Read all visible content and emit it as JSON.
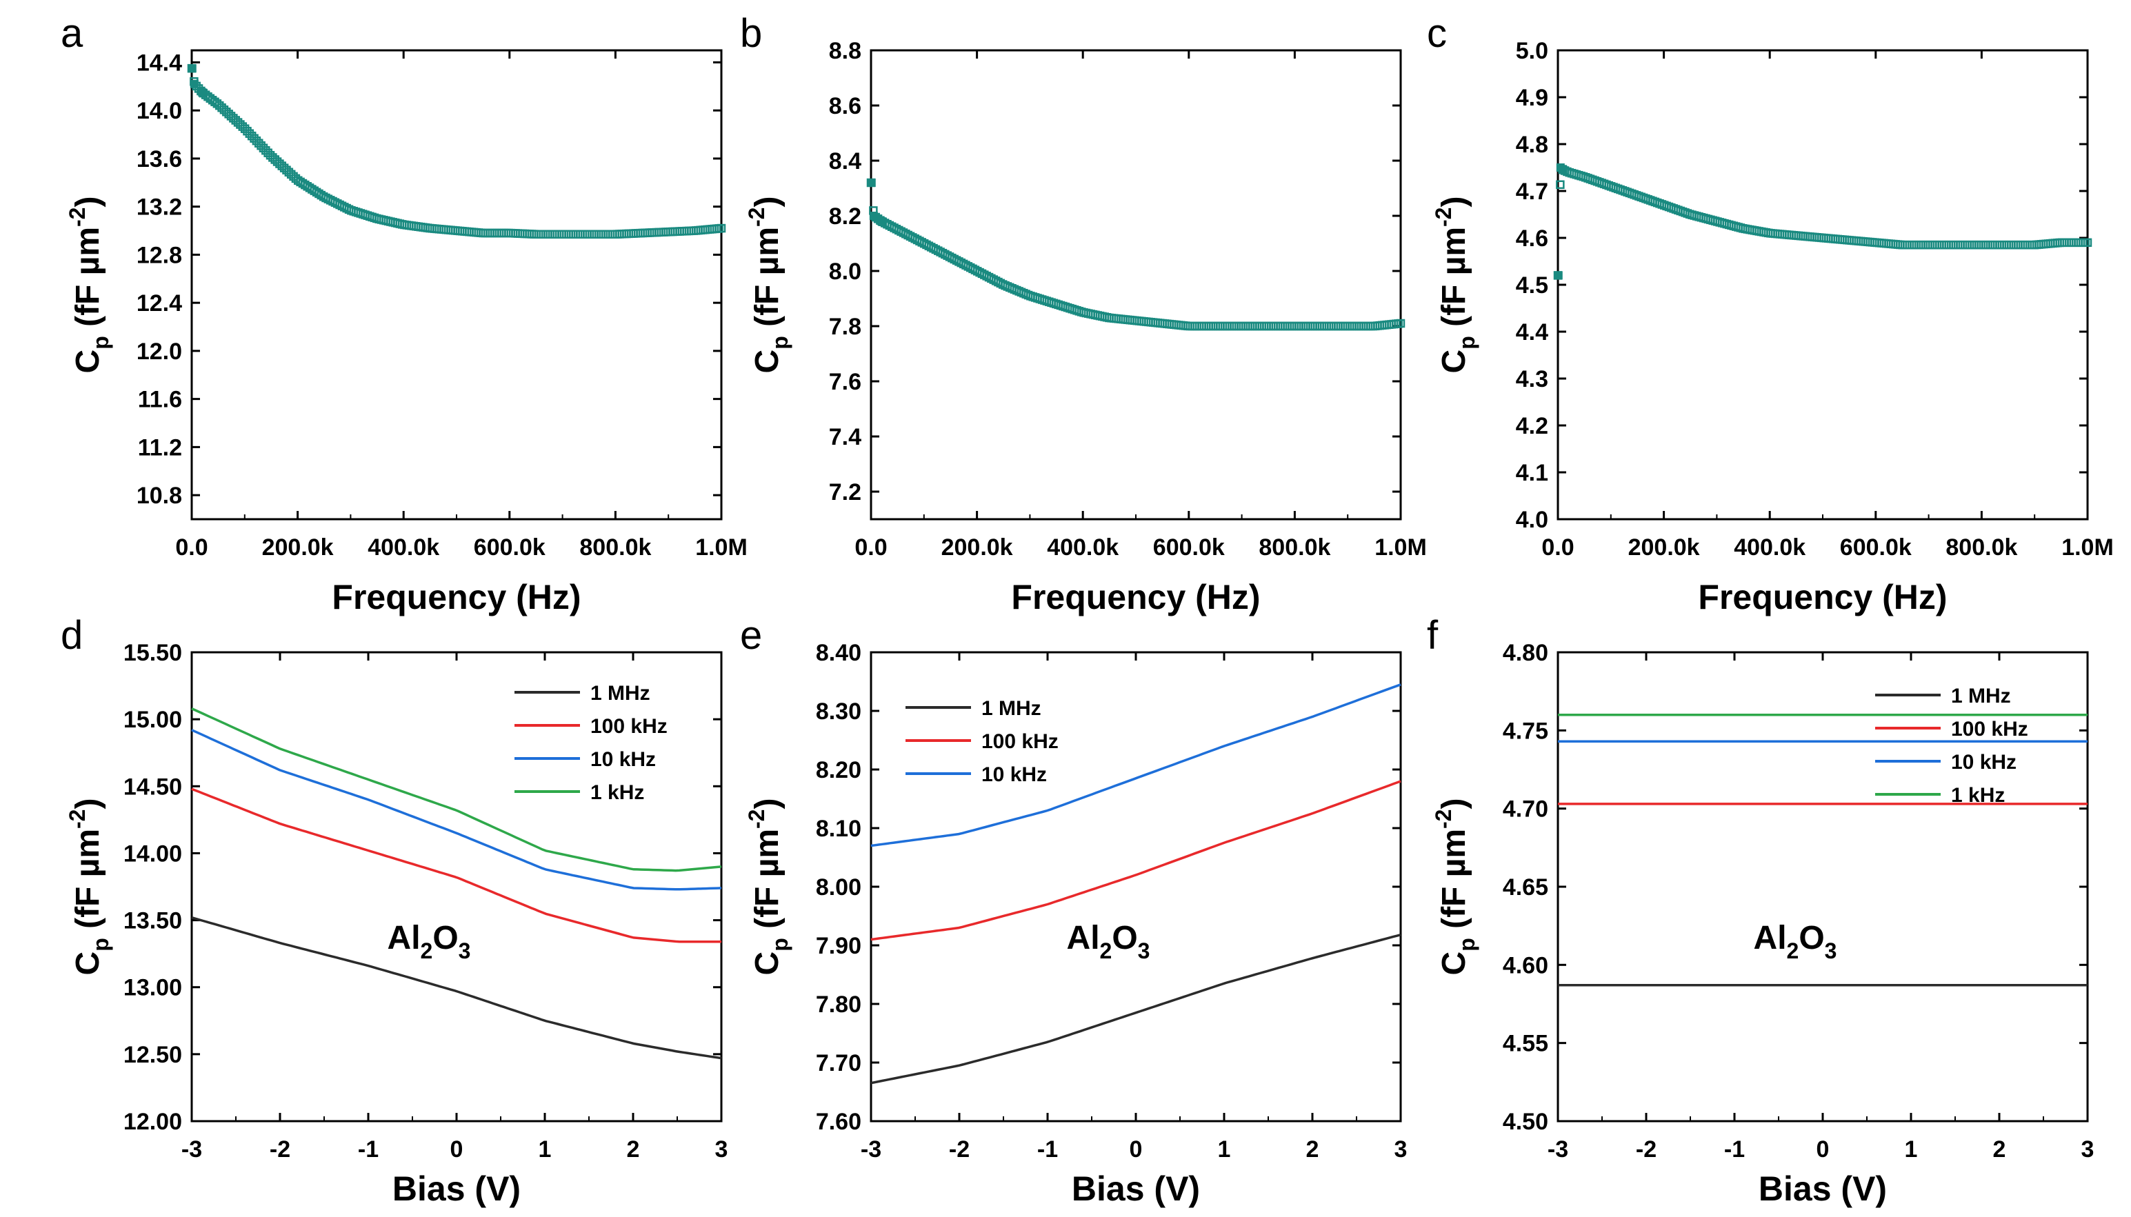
{
  "chart_data": [
    {
      "panel": "a",
      "type": "scatter",
      "xlabel": "Frequency  (Hz)",
      "ylabel": "C_p (fF µm^-2)",
      "xlim": [
        0,
        1000000
      ],
      "ylim": [
        10.6,
        14.5
      ],
      "xticks": [
        0,
        200000,
        400000,
        600000,
        800000,
        1000000
      ],
      "xtick_labels": [
        "0.0",
        "200.0k",
        "400.0k",
        "600.0k",
        "800.0k",
        "1.0M"
      ],
      "yticks": [
        10.8,
        11.2,
        11.6,
        12.0,
        12.4,
        12.8,
        13.2,
        13.6,
        14.0,
        14.4
      ],
      "ytick_labels": [
        "10.8",
        "11.2",
        "11.6",
        "12.0",
        "12.4",
        "12.8",
        "13.2",
        "13.6",
        "14.0",
        "14.4"
      ],
      "marker_color": "#1a8a80",
      "series": [
        {
          "x": [
            1000,
            5000,
            20000,
            50000,
            100000,
            150000,
            200000,
            250000,
            300000,
            350000,
            400000,
            450000,
            500000,
            550000,
            600000,
            650000,
            700000,
            750000,
            800000,
            850000,
            900000,
            950000,
            1000000
          ],
          "y": [
            14.35,
            14.22,
            14.15,
            14.05,
            13.85,
            13.62,
            13.42,
            13.28,
            13.17,
            13.1,
            13.05,
            13.02,
            13.0,
            12.98,
            12.98,
            12.97,
            12.97,
            12.97,
            12.97,
            12.98,
            12.99,
            13.0,
            13.02
          ]
        }
      ]
    },
    {
      "panel": "b",
      "type": "scatter",
      "xlabel": "Frequency  (Hz)",
      "ylabel": "C_p (fF µm^-2)",
      "xlim": [
        0,
        1000000
      ],
      "ylim": [
        7.1,
        8.8
      ],
      "xticks": [
        0,
        200000,
        400000,
        600000,
        800000,
        1000000
      ],
      "xtick_labels": [
        "0.0",
        "200.0k",
        "400.0k",
        "600.0k",
        "800.0k",
        "1.0M"
      ],
      "yticks": [
        7.2,
        7.4,
        7.6,
        7.8,
        8.0,
        8.2,
        8.4,
        8.6,
        8.8
      ],
      "ytick_labels": [
        "7.2",
        "7.4",
        "7.6",
        "7.8",
        "8.0",
        "8.2",
        "8.4",
        "8.6",
        "8.8"
      ],
      "marker_color": "#1a8a80",
      "series": [
        {
          "x": [
            1000,
            5000,
            20000,
            50000,
            100000,
            150000,
            200000,
            250000,
            300000,
            350000,
            400000,
            450000,
            500000,
            550000,
            600000,
            650000,
            700000,
            750000,
            800000,
            850000,
            900000,
            950000,
            1000000
          ],
          "y": [
            8.32,
            8.2,
            8.18,
            8.15,
            8.1,
            8.05,
            8.0,
            7.95,
            7.91,
            7.88,
            7.85,
            7.83,
            7.82,
            7.81,
            7.8,
            7.8,
            7.8,
            7.8,
            7.8,
            7.8,
            7.8,
            7.8,
            7.81
          ]
        }
      ]
    },
    {
      "panel": "c",
      "type": "scatter",
      "xlabel": "Frequency  (Hz)",
      "ylabel": "C_p (fF µm^-2)",
      "xlim": [
        0,
        1000000
      ],
      "ylim": [
        4.0,
        5.0
      ],
      "xticks": [
        0,
        200000,
        400000,
        600000,
        800000,
        1000000
      ],
      "xtick_labels": [
        "0.0",
        "200.0k",
        "400.0k",
        "600.0k",
        "800.0k",
        "1.0M"
      ],
      "yticks": [
        4.0,
        4.1,
        4.2,
        4.3,
        4.4,
        4.5,
        4.6,
        4.7,
        4.8,
        4.9,
        5.0
      ],
      "ytick_labels": [
        "4.0",
        "4.1",
        "4.2",
        "4.3",
        "4.4",
        "4.5",
        "4.6",
        "4.7",
        "4.8",
        "4.9",
        "5.0"
      ],
      "marker_color": "#1a8a80",
      "series": [
        {
          "x": [
            1000,
            5000,
            10000,
            20000,
            50000,
            100000,
            150000,
            200000,
            250000,
            300000,
            350000,
            400000,
            450000,
            500000,
            550000,
            600000,
            650000,
            700000,
            750000,
            800000,
            850000,
            900000,
            950000,
            1000000
          ],
          "y": [
            4.52,
            4.75,
            4.745,
            4.74,
            4.73,
            4.71,
            4.69,
            4.67,
            4.65,
            4.635,
            4.62,
            4.61,
            4.605,
            4.6,
            4.595,
            4.59,
            4.585,
            4.585,
            4.585,
            4.585,
            4.585,
            4.585,
            4.59,
            4.59
          ]
        }
      ]
    },
    {
      "panel": "d",
      "type": "line",
      "xlabel": "Bias (V)",
      "ylabel": "C_p (fF µm^-2)",
      "xlim": [
        -3,
        3
      ],
      "ylim": [
        12.0,
        15.5
      ],
      "xticks": [
        -3,
        -2,
        -1,
        0,
        1,
        2,
        3
      ],
      "xtick_labels": [
        "-3",
        "-2",
        "-1",
        "0",
        "1",
        "2",
        "3"
      ],
      "yticks": [
        12.0,
        12.5,
        13.0,
        13.5,
        14.0,
        14.5,
        15.0,
        15.5
      ],
      "ytick_labels": [
        "12.00",
        "12.50",
        "13.00",
        "13.50",
        "14.00",
        "14.50",
        "15.00",
        "15.50"
      ],
      "annotation": "Al2O3",
      "legend": "top-right",
      "x": [
        -3,
        -2,
        -1,
        0,
        1,
        2,
        2.5,
        3
      ],
      "series": [
        {
          "name": "1 MHz",
          "color": "#2b2b2b",
          "values": [
            13.52,
            13.33,
            13.16,
            12.97,
            12.75,
            12.58,
            12.52,
            12.47
          ]
        },
        {
          "name": "100 kHz",
          "color": "#e8292b",
          "values": [
            14.48,
            14.22,
            14.02,
            13.82,
            13.55,
            13.37,
            13.34,
            13.34
          ]
        },
        {
          "name": "10 kHz",
          "color": "#1e6fd9",
          "values": [
            14.92,
            14.62,
            14.4,
            14.15,
            13.88,
            13.74,
            13.73,
            13.74
          ]
        },
        {
          "name": "1 kHz",
          "color": "#2ea84a",
          "values": [
            15.08,
            14.78,
            14.55,
            14.32,
            14.02,
            13.88,
            13.87,
            13.9
          ]
        }
      ]
    },
    {
      "panel": "e",
      "type": "line",
      "xlabel": "Bias (V)",
      "ylabel": "C_p (fF µm^-2)",
      "xlim": [
        -3,
        3
      ],
      "ylim": [
        7.6,
        8.4
      ],
      "xticks": [
        -3,
        -2,
        -1,
        0,
        1,
        2,
        3
      ],
      "xtick_labels": [
        "-3",
        "-2",
        "-1",
        "0",
        "1",
        "2",
        "3"
      ],
      "yticks": [
        7.6,
        7.7,
        7.8,
        7.9,
        8.0,
        8.1,
        8.2,
        8.3,
        8.4
      ],
      "ytick_labels": [
        "7.60",
        "7.70",
        "7.80",
        "7.90",
        "8.00",
        "8.10",
        "8.20",
        "8.30",
        "8.40"
      ],
      "annotation": "Al2O3",
      "legend": "top-left",
      "x": [
        -3,
        -2,
        -1,
        0,
        1,
        2,
        3
      ],
      "series": [
        {
          "name": "1 MHz",
          "color": "#2b2b2b",
          "values": [
            7.665,
            7.695,
            7.735,
            7.785,
            7.835,
            7.878,
            7.918
          ]
        },
        {
          "name": "100 kHz",
          "color": "#e8292b",
          "values": [
            7.91,
            7.93,
            7.97,
            8.02,
            8.075,
            8.125,
            8.18
          ]
        },
        {
          "name": "10 kHz",
          "color": "#1e6fd9",
          "values": [
            8.07,
            8.09,
            8.13,
            8.185,
            8.24,
            8.29,
            8.345
          ]
        }
      ]
    },
    {
      "panel": "f",
      "type": "line",
      "xlabel": "Bias (V)",
      "ylabel": "C_p (fF µm^-2)",
      "xlim": [
        -3,
        3
      ],
      "ylim": [
        4.5,
        4.8
      ],
      "xticks": [
        -3,
        -2,
        -1,
        0,
        1,
        2,
        3
      ],
      "xtick_labels": [
        "-3",
        "-2",
        "-1",
        "0",
        "1",
        "2",
        "3"
      ],
      "yticks": [
        4.5,
        4.55,
        4.6,
        4.65,
        4.7,
        4.75,
        4.8
      ],
      "ytick_labels": [
        "4.50",
        "4.55",
        "4.60",
        "4.65",
        "4.70",
        "4.75",
        "4.80"
      ],
      "annotation": "Al2O3",
      "legend": "top-right",
      "x": [
        -3,
        -2,
        -1,
        0,
        1,
        2,
        3
      ],
      "series": [
        {
          "name": "1 MHz",
          "color": "#2b2b2b",
          "values": [
            4.587,
            4.587,
            4.587,
            4.587,
            4.587,
            4.587,
            4.587
          ]
        },
        {
          "name": "100 kHz",
          "color": "#e8292b",
          "values": [
            4.703,
            4.703,
            4.703,
            4.703,
            4.703,
            4.703,
            4.703
          ]
        },
        {
          "name": "10 kHz",
          "color": "#1e6fd9",
          "values": [
            4.743,
            4.743,
            4.743,
            4.743,
            4.743,
            4.743,
            4.743
          ]
        },
        {
          "name": "1 kHz",
          "color": "#2ea84a",
          "values": [
            4.76,
            4.76,
            4.76,
            4.76,
            4.76,
            4.76,
            4.76
          ]
        }
      ]
    }
  ]
}
